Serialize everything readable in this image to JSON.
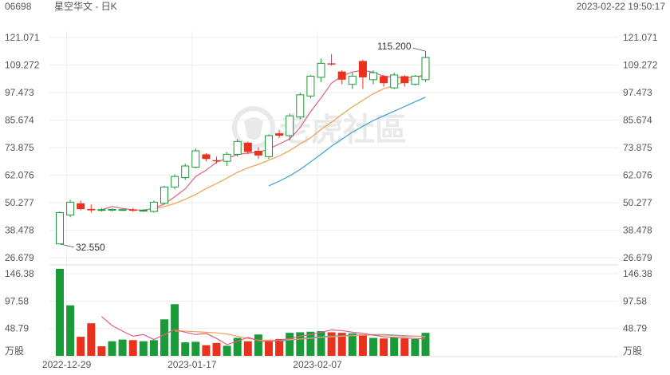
{
  "header": {
    "code": "06698",
    "name": "星空华文 - 日K",
    "timestamp": "2023-02-22 19:50:17"
  },
  "watermark": {
    "text": "老虎社區",
    "icon": "tiger-logo-icon"
  },
  "colors": {
    "up": "#1a9a38",
    "down": "#e8321e",
    "ma_short": "#e0607e",
    "ma_mid": "#f0a050",
    "ma_long": "#3b9fd4",
    "grid": "#eeeeee",
    "axis_text": "#555555"
  },
  "chart_data": [
    {
      "type": "candlestick",
      "y_ticks": [
        "121.071",
        "109.272",
        "97.473",
        "85.674",
        "73.875",
        "62.076",
        "50.277",
        "38.478",
        "26.679"
      ],
      "ylim": [
        26.679,
        121.071
      ],
      "x_ticks": [
        {
          "label": "2022-12-29",
          "index": 1
        },
        {
          "label": "2023-01-17",
          "index": 13
        },
        {
          "label": "2023-02-07",
          "index": 25
        }
      ],
      "annotations": [
        {
          "label": "32.550",
          "index": 0,
          "value": 32.55,
          "side": "right"
        },
        {
          "label": "115.200",
          "index": 35,
          "value": 115.2,
          "side": "left"
        }
      ],
      "candles": [
        {
          "o": 32.6,
          "h": 46.5,
          "l": 32.55,
          "c": 46.0
        },
        {
          "o": 45.0,
          "h": 51.5,
          "l": 44.0,
          "c": 50.5
        },
        {
          "o": 50.0,
          "h": 51.2,
          "l": 47.0,
          "c": 47.5
        },
        {
          "o": 47.6,
          "h": 49.5,
          "l": 46.0,
          "c": 47.0
        },
        {
          "o": 47.0,
          "h": 48.0,
          "l": 46.5,
          "c": 47.3
        },
        {
          "o": 47.2,
          "h": 47.8,
          "l": 46.6,
          "c": 47.4
        },
        {
          "o": 47.0,
          "h": 47.6,
          "l": 46.8,
          "c": 47.3
        },
        {
          "o": 47.4,
          "h": 47.9,
          "l": 46.4,
          "c": 46.8
        },
        {
          "o": 46.8,
          "h": 47.5,
          "l": 46.3,
          "c": 47.0
        },
        {
          "o": 46.5,
          "h": 51.2,
          "l": 46.0,
          "c": 50.5
        },
        {
          "o": 50.0,
          "h": 57.5,
          "l": 49.5,
          "c": 57.0
        },
        {
          "o": 57.0,
          "h": 62.5,
          "l": 56.0,
          "c": 61.5
        },
        {
          "o": 61.0,
          "h": 67.0,
          "l": 60.0,
          "c": 66.0
        },
        {
          "o": 65.5,
          "h": 73.5,
          "l": 65.0,
          "c": 72.5
        },
        {
          "o": 71.0,
          "h": 71.5,
          "l": 68.0,
          "c": 69.0
        },
        {
          "o": 68.5,
          "h": 70.0,
          "l": 67.0,
          "c": 68.0
        },
        {
          "o": 68.0,
          "h": 72.0,
          "l": 66.0,
          "c": 71.0
        },
        {
          "o": 71.0,
          "h": 77.5,
          "l": 70.0,
          "c": 76.5
        },
        {
          "o": 76.0,
          "h": 76.5,
          "l": 71.0,
          "c": 72.0
        },
        {
          "o": 72.5,
          "h": 74.0,
          "l": 69.0,
          "c": 70.5
        },
        {
          "o": 70.0,
          "h": 79.5,
          "l": 69.0,
          "c": 79.0
        },
        {
          "o": 80.0,
          "h": 81.5,
          "l": 78.0,
          "c": 79.0
        },
        {
          "o": 79.0,
          "h": 88.5,
          "l": 77.0,
          "c": 87.5
        },
        {
          "o": 87.0,
          "h": 97.5,
          "l": 86.0,
          "c": 96.5
        },
        {
          "o": 96.0,
          "h": 105.0,
          "l": 95.0,
          "c": 104.5
        },
        {
          "o": 104.0,
          "h": 112.0,
          "l": 102.0,
          "c": 110.0
        },
        {
          "o": 110.0,
          "h": 114.0,
          "l": 109.0,
          "c": 109.5
        },
        {
          "o": 106.5,
          "h": 107.0,
          "l": 101.0,
          "c": 103.0
        },
        {
          "o": 101.0,
          "h": 106.0,
          "l": 99.0,
          "c": 104.5
        },
        {
          "o": 111.0,
          "h": 111.5,
          "l": 99.0,
          "c": 104.0
        },
        {
          "o": 103.0,
          "h": 107.0,
          "l": 101.0,
          "c": 106.0
        },
        {
          "o": 104.5,
          "h": 105.0,
          "l": 100.0,
          "c": 101.5
        },
        {
          "o": 99.5,
          "h": 106.0,
          "l": 99.0,
          "c": 105.0
        },
        {
          "o": 104.5,
          "h": 105.0,
          "l": 100.0,
          "c": 101.5
        },
        {
          "o": 101.0,
          "h": 105.0,
          "l": 100.5,
          "c": 104.5
        },
        {
          "o": 103.0,
          "h": 115.2,
          "l": 102.0,
          "c": 112.5
        }
      ],
      "ma_short": [
        null,
        null,
        null,
        null,
        47.2,
        48.6,
        47.8,
        47.2,
        47.1,
        47.8,
        49.7,
        52.8,
        56.2,
        61.5,
        64.2,
        67.6,
        69.3,
        70.9,
        71.5,
        71.8,
        73.3,
        75.4,
        77.6,
        82.5,
        89.3,
        95.2,
        101.5,
        104.5,
        106.3,
        107.0,
        106.2,
        104.5,
        104.1,
        103.8,
        104.0,
        105.2
      ],
      "ma_mid": [
        null,
        null,
        null,
        null,
        null,
        null,
        null,
        null,
        null,
        47.5,
        48.6,
        49.9,
        51.7,
        53.8,
        56.3,
        58.5,
        60.8,
        63.3,
        65.2,
        66.7,
        68.5,
        70.3,
        72.6,
        75.5,
        78.0,
        81.7,
        84.7,
        88.1,
        91.3,
        94.2,
        97.0,
        99.1,
        100.5,
        102.1,
        103.7,
        104.9
      ],
      "ma_long": [
        null,
        null,
        null,
        null,
        null,
        null,
        null,
        null,
        null,
        null,
        null,
        null,
        null,
        null,
        null,
        null,
        null,
        null,
        null,
        null,
        57.5,
        59.5,
        61.8,
        64.5,
        67.8,
        71.0,
        74.5,
        77.5,
        80.5,
        83.0,
        85.5,
        87.5,
        89.5,
        91.5,
        93.5,
        95.5
      ]
    },
    {
      "type": "bar",
      "name": "volume",
      "unit": "万股",
      "y_ticks": [
        "146.38",
        "97.58",
        "48.79"
      ],
      "ylim": [
        0,
        146.38
      ],
      "up_flags": [
        true,
        true,
        false,
        false,
        false,
        true,
        true,
        false,
        true,
        true,
        true,
        true,
        true,
        true,
        false,
        false,
        true,
        true,
        false,
        true,
        false,
        false,
        true,
        true,
        true,
        true,
        false,
        false,
        true,
        false,
        true,
        false,
        true,
        false,
        true,
        true
      ],
      "values": [
        155,
        90,
        34,
        58,
        17,
        26,
        29,
        28,
        26,
        28,
        65,
        92,
        24,
        25,
        19,
        23,
        18,
        32,
        26,
        38,
        27,
        30,
        41,
        42,
        43,
        44,
        42,
        41,
        40,
        38,
        32,
        31,
        33,
        31,
        30,
        41
      ],
      "vol_ma": [
        null,
        null,
        null,
        null,
        70,
        54,
        44,
        35,
        38,
        29,
        38,
        47,
        42,
        38,
        40,
        31,
        20,
        26,
        33,
        27,
        25,
        28,
        31,
        35,
        38,
        42,
        46,
        45,
        42,
        40,
        37,
        34,
        33,
        32,
        31,
        30
      ],
      "vol_ma2": [
        null,
        null,
        null,
        null,
        null,
        null,
        null,
        null,
        null,
        null,
        null,
        44,
        44,
        43,
        42,
        41,
        39,
        35,
        31,
        28,
        28,
        28,
        29,
        30,
        31,
        33,
        34,
        35,
        36,
        37,
        37,
        37,
        36,
        35,
        35,
        34
      ],
      "vol_ma3": [
        null,
        null,
        null,
        null,
        null,
        null,
        null,
        null,
        null,
        null,
        null,
        null,
        null,
        null,
        null,
        null,
        null,
        null,
        null,
        null,
        null,
        26,
        28,
        30,
        33,
        34,
        35,
        36,
        37,
        37,
        38,
        38,
        37,
        36,
        35,
        35
      ]
    }
  ]
}
